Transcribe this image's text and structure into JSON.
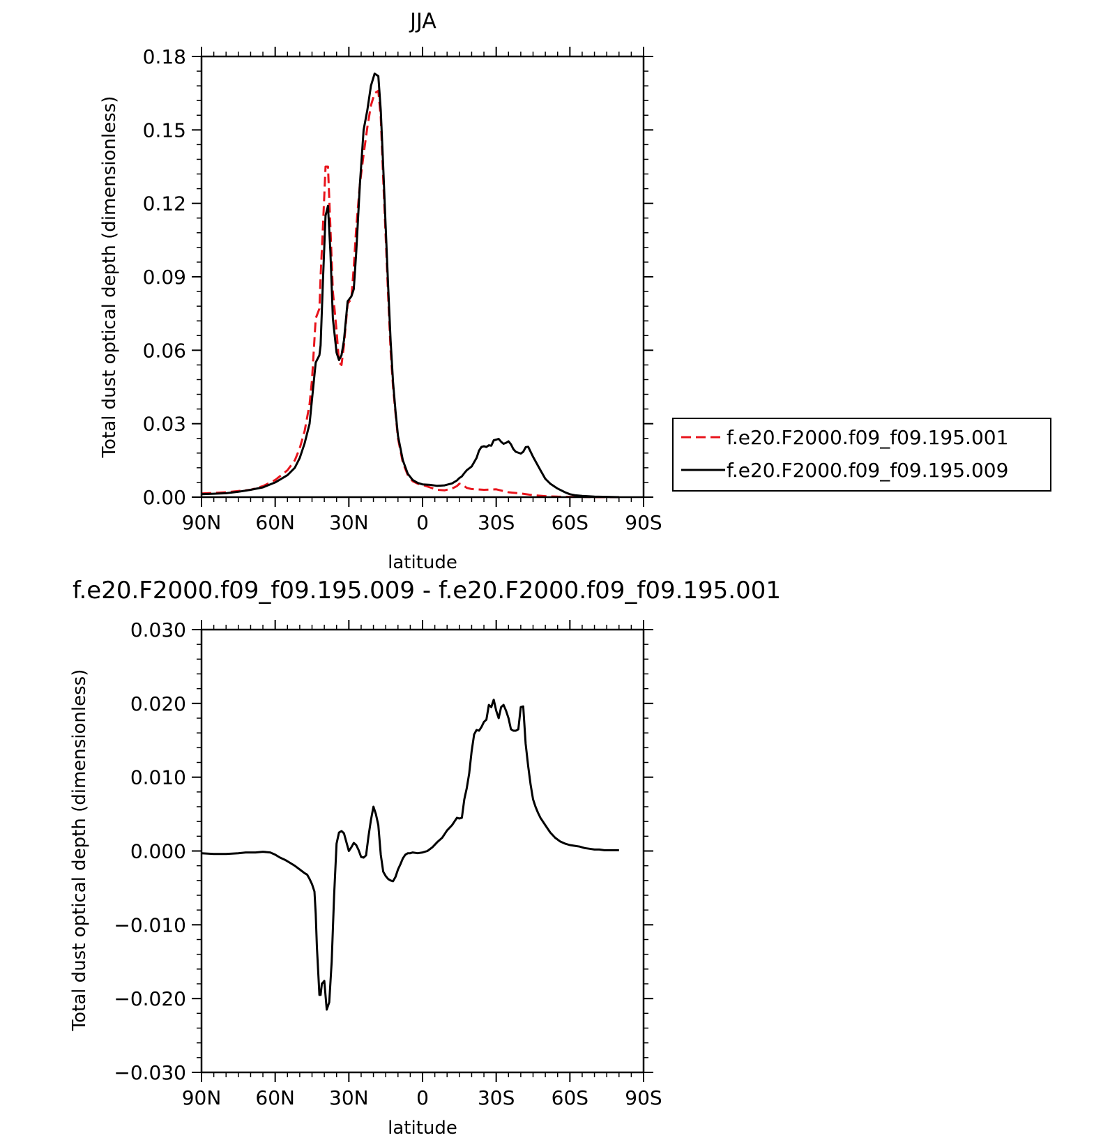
{
  "chart_data": [
    {
      "type": "line",
      "title": "JJA",
      "xlabel": "latitude",
      "ylabel": "Total dust optical depth (dimensionless)",
      "xlim": [
        90,
        -90
      ],
      "ylim": [
        0,
        0.18
      ],
      "x_ticks": [
        90,
        60,
        30,
        0,
        -30,
        -60,
        -90
      ],
      "x_tick_labels": [
        "90N",
        "60N",
        "30N",
        "0",
        "30S",
        "60S",
        "90S"
      ],
      "y_ticks": [
        0,
        0.03,
        0.06,
        0.09,
        0.12,
        0.15,
        0.18
      ],
      "y_tick_labels": [
        "0.00",
        "0.03",
        "0.06",
        "0.09",
        "0.12",
        "0.15",
        "0.18"
      ],
      "legend_position": "right",
      "series": [
        {
          "name": "f.e20.F2000.f09_f09.195.001",
          "color": "#e8141c",
          "style": "dashed",
          "x": [
            90,
            85,
            80,
            75,
            70,
            65,
            60,
            55,
            52,
            50,
            48,
            46,
            45,
            43.5,
            42,
            41.5,
            40.5,
            39.5,
            38.5,
            37.5,
            36.5,
            35,
            34,
            33,
            32,
            30.5,
            29,
            28,
            27,
            25.5,
            24,
            22.5,
            21,
            19.5,
            18,
            17,
            16,
            15,
            14,
            13,
            12,
            11,
            10,
            8,
            6,
            4,
            2,
            0,
            -3,
            -6,
            -9,
            -12,
            -14,
            -15,
            -16,
            -17,
            -18,
            -20,
            -25,
            -30,
            -35,
            -40,
            -45,
            -50,
            -55,
            -60,
            -65,
            -70,
            -75,
            -80
          ],
          "y": [
            0.0015,
            0.0017,
            0.002,
            0.0025,
            0.003,
            0.0045,
            0.007,
            0.011,
            0.015,
            0.02,
            0.027,
            0.038,
            0.048,
            0.073,
            0.077,
            0.09,
            0.112,
            0.135,
            0.135,
            0.11,
            0.084,
            0.068,
            0.055,
            0.054,
            0.062,
            0.079,
            0.081,
            0.094,
            0.11,
            0.128,
            0.14,
            0.151,
            0.16,
            0.165,
            0.166,
            0.155,
            0.13,
            0.106,
            0.082,
            0.06,
            0.045,
            0.034,
            0.024,
            0.014,
            0.009,
            0.0065,
            0.0055,
            0.005,
            0.004,
            0.003,
            0.0028,
            0.0035,
            0.0045,
            0.0055,
            0.0052,
            0.0045,
            0.0038,
            0.0033,
            0.003,
            0.0032,
            0.002,
            0.0015,
            0.0008,
            0.0004,
            0.0002,
            0.0001,
            0.0001,
            0,
            0,
            0
          ]
        },
        {
          "name": "f.e20.F2000.f09_f09.195.009",
          "color": "#000000",
          "style": "solid",
          "x": [
            90,
            85,
            80,
            75,
            70,
            65,
            60,
            55,
            52,
            50,
            48,
            46,
            45,
            43.5,
            42,
            41.5,
            40.5,
            39.5,
            38.5,
            37.5,
            36.5,
            35,
            34,
            33,
            32,
            30.5,
            29,
            28,
            27,
            25.5,
            24,
            22.5,
            21,
            19.5,
            18,
            17,
            16,
            15,
            14,
            13,
            12,
            11,
            10,
            8,
            6,
            4,
            2,
            0,
            -3,
            -6,
            -9,
            -12,
            -14,
            -15,
            -16,
            -17,
            -18,
            -20,
            -22,
            -23,
            -24,
            -25,
            -26,
            -27,
            -28,
            -29,
            -30,
            -31,
            -32,
            -33,
            -34,
            -35,
            -36,
            -37,
            -38,
            -40,
            -41,
            -42,
            -43,
            -45,
            -48,
            -50,
            -52,
            -55,
            -58,
            -60,
            -62,
            -65,
            -70,
            -75,
            -80
          ],
          "y": [
            0.0012,
            0.0014,
            0.0016,
            0.0022,
            0.003,
            0.004,
            0.006,
            0.009,
            0.012,
            0.016,
            0.022,
            0.03,
            0.04,
            0.055,
            0.058,
            0.062,
            0.09,
            0.115,
            0.119,
            0.1,
            0.073,
            0.059,
            0.056,
            0.058,
            0.064,
            0.08,
            0.082,
            0.085,
            0.1,
            0.128,
            0.15,
            0.158,
            0.168,
            0.173,
            0.172,
            0.158,
            0.135,
            0.11,
            0.086,
            0.064,
            0.047,
            0.035,
            0.025,
            0.015,
            0.0095,
            0.007,
            0.0058,
            0.0052,
            0.005,
            0.0046,
            0.0048,
            0.0056,
            0.0068,
            0.0078,
            0.0085,
            0.0098,
            0.011,
            0.0125,
            0.016,
            0.019,
            0.0205,
            0.0208,
            0.0205,
            0.0212,
            0.021,
            0.0232,
            0.0235,
            0.0238,
            0.0226,
            0.0218,
            0.0222,
            0.0228,
            0.0216,
            0.0196,
            0.0185,
            0.0178,
            0.0185,
            0.0204,
            0.0206,
            0.0165,
            0.011,
            0.0075,
            0.0055,
            0.0035,
            0.002,
            0.0012,
            0.0008,
            0.0005,
            0.0002,
            0.0001,
            0
          ]
        }
      ]
    },
    {
      "type": "line",
      "title": "f.e20.F2000.f09_f09.195.009 - f.e20.F2000.f09_f09.195.001",
      "xlabel": "latitude",
      "ylabel": "Total dust optical depth (dimensionless)",
      "xlim": [
        90,
        -90
      ],
      "ylim": [
        -0.03,
        0.03
      ],
      "x_ticks": [
        90,
        60,
        30,
        0,
        -30,
        -60,
        -90
      ],
      "x_tick_labels": [
        "90N",
        "60N",
        "30N",
        "0",
        "30S",
        "60S",
        "90S"
      ],
      "y_ticks": [
        -0.03,
        -0.02,
        -0.01,
        0,
        0.01,
        0.02,
        0.03
      ],
      "y_tick_labels": [
        "−0.030",
        "−0.020",
        "−0.010",
        "0.000",
        "0.010",
        "0.020",
        "0.030"
      ],
      "series": [
        {
          "color": "#000000",
          "style": "solid",
          "x": [
            90,
            85,
            80,
            75,
            72,
            70,
            68,
            65,
            62,
            60,
            58,
            56,
            54,
            52,
            50,
            48,
            47,
            46,
            45,
            44,
            43.5,
            43,
            42,
            41.5,
            41,
            40.5,
            40,
            39,
            38,
            37,
            36,
            35,
            34,
            33,
            32,
            31,
            30,
            29,
            28,
            27,
            26,
            25,
            24,
            23,
            22,
            21,
            20,
            19,
            18,
            17,
            16,
            15,
            14,
            13,
            12,
            11,
            10,
            9,
            8,
            7,
            6,
            5,
            4,
            2,
            0,
            -2,
            -4,
            -6,
            -8,
            -10,
            -12,
            -14,
            -15,
            -16,
            -17,
            -18,
            -19,
            -20,
            -21,
            -22,
            -23,
            -24,
            -25,
            -26,
            -27,
            -28,
            -29,
            -30,
            -31,
            -32,
            -33,
            -34,
            -35,
            -36,
            -37,
            -38,
            -39,
            -40,
            -41,
            -42,
            -43,
            -44,
            -45,
            -46,
            -47,
            -48,
            -50,
            -52,
            -54,
            -56,
            -58,
            -60,
            -62,
            -64,
            -66,
            -68,
            -70,
            -72,
            -74,
            -76,
            -78,
            -80
          ],
          "y": [
            -0.0003,
            -0.0004,
            -0.0004,
            -0.0003,
            -0.0002,
            -0.0002,
            -0.0002,
            -0.0001,
            -0.0002,
            -0.0005,
            -0.0009,
            -0.0012,
            -0.0016,
            -0.002,
            -0.0025,
            -0.003,
            -0.0032,
            -0.0038,
            -0.0045,
            -0.0055,
            -0.0085,
            -0.013,
            -0.0195,
            -0.0195,
            -0.018,
            -0.0178,
            -0.0176,
            -0.0215,
            -0.0205,
            -0.015,
            -0.006,
            0.001,
            0.0025,
            0.0027,
            0.0024,
            0.0012,
            0,
            0.0005,
            0.0011,
            0.0008,
            0.0001,
            -0.0008,
            -0.0009,
            -0.0006,
            0.002,
            0.0042,
            0.006,
            0.005,
            0.0035,
            -0.0005,
            -0.0028,
            -0.0034,
            -0.0038,
            -0.004,
            -0.0041,
            -0.0035,
            -0.0025,
            -0.0018,
            -0.001,
            -0.0005,
            -0.0003,
            -0.0003,
            -0.0002,
            -0.0003,
            -0.0002,
            0,
            0.0005,
            0.0012,
            0.0018,
            0.0028,
            0.0035,
            0.0045,
            0.0044,
            0.0045,
            0.007,
            0.0085,
            0.0105,
            0.0135,
            0.0158,
            0.0164,
            0.0163,
            0.0168,
            0.0175,
            0.0178,
            0.0198,
            0.0195,
            0.0205,
            0.019,
            0.018,
            0.0195,
            0.0198,
            0.019,
            0.018,
            0.0165,
            0.0163,
            0.0163,
            0.0165,
            0.0195,
            0.0196,
            0.0145,
            0.0115,
            0.009,
            0.007,
            0.006,
            0.0052,
            0.0045,
            0.0035,
            0.0025,
            0.0018,
            0.0013,
            0.001,
            0.0008,
            0.0007,
            0.0006,
            0.0004,
            0.0003,
            0.0002,
            0.0002,
            0.0001,
            0.0001,
            0.0001,
            0.0001
          ]
        }
      ]
    }
  ]
}
